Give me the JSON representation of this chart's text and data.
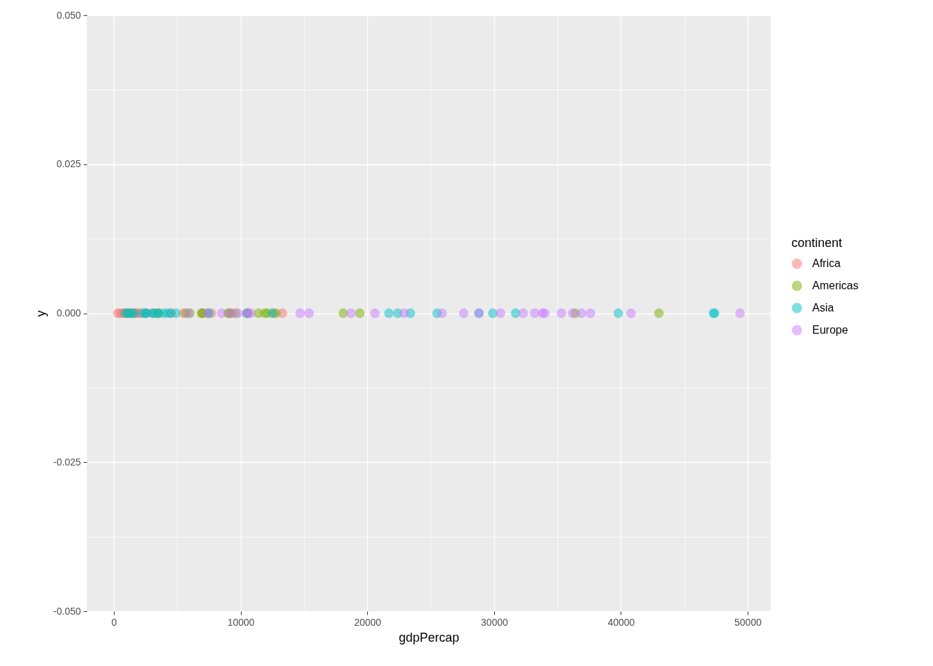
{
  "chart_data": {
    "type": "scatter",
    "xlabel": "gdpPercap",
    "ylabel": "y",
    "legend_title": "continent",
    "legend": "right",
    "grid": true,
    "marker": "circle",
    "xlim": [
      -2136,
      51808
    ],
    "xticks": [
      0,
      10000,
      20000,
      30000,
      40000,
      50000
    ],
    "ylim": [
      -0.05,
      0.05
    ],
    "yticks": [
      {
        "value": -0.05,
        "label": "-0.050"
      },
      {
        "value": -0.025,
        "label": "-0.025"
      },
      {
        "value": 0,
        "label": "0.000"
      },
      {
        "value": 0.025,
        "label": "0.025"
      },
      {
        "value": 0.05,
        "label": "0.050"
      }
    ],
    "series": [
      {
        "name": "Africa",
        "color": "#f8766d",
        "x": [
          300,
          500,
          700,
          900,
          1100,
          1300,
          1500,
          1700,
          1900,
          2100,
          2500,
          3000,
          3500,
          4500,
          5500,
          7000,
          7700,
          9300,
          10500,
          12600,
          13300
        ],
        "values": [
          0,
          0,
          0,
          0,
          0,
          0,
          0,
          0,
          0,
          0,
          0,
          0,
          0,
          0,
          0,
          0,
          0,
          0,
          0,
          0,
          0
        ]
      },
      {
        "name": "Americas",
        "color": "#7cae00",
        "x": [
          1200,
          3500,
          5700,
          6000,
          6900,
          7000,
          7400,
          9000,
          9100,
          9600,
          10600,
          11400,
          11900,
          12100,
          12800,
          18100,
          19400,
          36400,
          43000
        ],
        "values": [
          0,
          0,
          0,
          0,
          0,
          0,
          0,
          0,
          0,
          0,
          0,
          0,
          0,
          0,
          0,
          0,
          0,
          0,
          0
        ]
      },
      {
        "name": "Asia",
        "color": "#00bfc4",
        "x": [
          900,
          1100,
          1400,
          1600,
          2300,
          2500,
          2600,
          3100,
          3200,
          3500,
          3900,
          4200,
          4500,
          4900,
          7500,
          10500,
          12500,
          21700,
          22400,
          23400,
          25500,
          28800,
          29900,
          31700,
          39800,
          47300,
          47400
        ],
        "values": [
          0,
          0,
          0,
          0,
          0,
          0,
          0,
          0,
          0,
          0,
          0,
          0,
          0,
          0,
          0,
          0,
          0,
          0,
          0,
          0,
          0,
          0,
          0,
          0,
          0,
          0,
          0
        ]
      },
      {
        "name": "Europe",
        "color": "#c77cff",
        "x": [
          5900,
          7400,
          8500,
          9200,
          9800,
          10500,
          10800,
          14700,
          15400,
          18700,
          20600,
          22900,
          25900,
          27600,
          28800,
          30500,
          32300,
          33200,
          33800,
          34000,
          35300,
          36200,
          36900,
          37600,
          40800,
          49400
        ],
        "values": [
          0,
          0,
          0,
          0,
          0,
          0,
          0,
          0,
          0,
          0,
          0,
          0,
          0,
          0,
          0,
          0,
          0,
          0,
          0,
          0,
          0,
          0,
          0,
          0,
          0,
          0
        ]
      }
    ]
  }
}
